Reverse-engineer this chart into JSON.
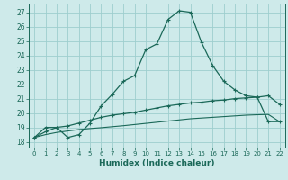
{
  "xlabel": "Humidex (Indice chaleur)",
  "bg_color": "#ceeaea",
  "grid_color": "#9ecece",
  "line_color": "#1a6858",
  "xlim": [
    -0.5,
    22.5
  ],
  "ylim": [
    17.6,
    27.6
  ],
  "yticks": [
    18,
    19,
    20,
    21,
    22,
    23,
    24,
    25,
    26,
    27
  ],
  "xticks": [
    0,
    1,
    2,
    3,
    4,
    5,
    6,
    7,
    8,
    9,
    10,
    11,
    12,
    13,
    14,
    15,
    16,
    17,
    18,
    19,
    20,
    21,
    22
  ],
  "curve1_x": [
    0,
    1,
    2,
    3,
    4,
    5,
    6,
    7,
    8,
    9,
    10,
    11,
    12,
    13,
    14,
    15,
    16,
    17,
    18,
    19,
    20,
    21,
    22
  ],
  "curve1_y": [
    18.3,
    19.0,
    19.0,
    18.3,
    18.5,
    19.3,
    20.5,
    21.3,
    22.2,
    22.6,
    24.4,
    24.8,
    26.5,
    27.1,
    27.0,
    24.9,
    23.3,
    22.2,
    21.6,
    21.2,
    21.1,
    21.2,
    20.6
  ],
  "curve2_x": [
    0,
    1,
    2,
    3,
    4,
    5,
    6,
    7,
    8,
    9,
    10,
    11,
    12,
    13,
    14,
    15,
    16,
    17,
    18,
    19,
    20,
    21,
    22
  ],
  "curve2_y": [
    18.3,
    18.7,
    19.0,
    19.1,
    19.3,
    19.5,
    19.7,
    19.85,
    19.95,
    20.05,
    20.2,
    20.35,
    20.5,
    20.6,
    20.7,
    20.75,
    20.85,
    20.9,
    21.0,
    21.05,
    21.1,
    19.4,
    19.4
  ],
  "curve3_x": [
    0,
    1,
    2,
    3,
    4,
    5,
    6,
    7,
    8,
    9,
    10,
    11,
    12,
    13,
    14,
    15,
    16,
    17,
    18,
    19,
    20,
    21,
    22
  ],
  "curve3_y": [
    18.3,
    18.5,
    18.65,
    18.75,
    18.85,
    18.92,
    18.98,
    19.05,
    19.12,
    19.2,
    19.28,
    19.36,
    19.44,
    19.52,
    19.6,
    19.65,
    19.7,
    19.75,
    19.8,
    19.85,
    19.88,
    19.9,
    19.4
  ]
}
